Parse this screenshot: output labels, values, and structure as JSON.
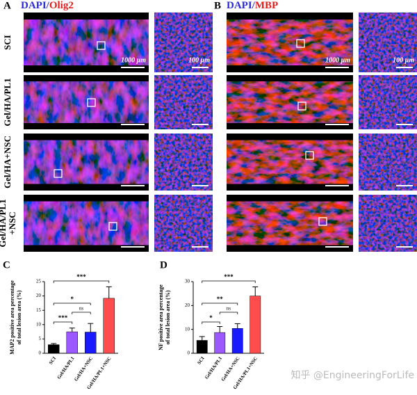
{
  "panel_a": {
    "letter": "A",
    "stain": [
      "DAPI",
      "/",
      "Olig2"
    ],
    "scale_large": "1000 μm",
    "scale_small": "100 μm"
  },
  "panel_b": {
    "letter": "B",
    "stain": [
      "DAPI",
      "/",
      "MBP"
    ],
    "scale_large": "1000 μm",
    "scale_small": "100 μm"
  },
  "rows": [
    [
      "SCI"
    ],
    [
      "Gel/HA/PL1"
    ],
    [
      "Gel/HA+NSC"
    ],
    [
      "Gel/HA/PL1",
      "+NSC"
    ]
  ],
  "chart_data": [
    {
      "type": "bar",
      "label": "C",
      "ylabel": [
        "MAP2 positive area percentage",
        "of total lesion area (%)"
      ],
      "categories": [
        "SCI",
        "Gel/HA/PL1",
        "Gel/HA+NSC",
        "Gel/HA/PL1+NSC"
      ],
      "values": [
        3.0,
        7.5,
        7.4,
        19.2
      ],
      "errors": [
        0.4,
        1.3,
        3.0,
        4.0
      ],
      "colors": [
        "#000000",
        "#9b59ff",
        "#1a1aff",
        "#ff4d4d"
      ],
      "ylim": [
        0,
        25
      ],
      "yticks": [
        0,
        5,
        10,
        15,
        20,
        25
      ],
      "annotations": [
        "***",
        "ns",
        "*",
        "***"
      ]
    },
    {
      "type": "bar",
      "label": "D",
      "ylabel": [
        "NF positive area percentage",
        "of total lesion area (%)"
      ],
      "categories": [
        "SCI",
        "Gel/HA/PL1",
        "Gel/HA+NSC",
        "Gel/HA/PL1+NSC"
      ],
      "values": [
        5.4,
        8.7,
        10.4,
        24.0
      ],
      "errors": [
        1.6,
        2.5,
        2.0,
        3.8
      ],
      "colors": [
        "#000000",
        "#9b59ff",
        "#1a1aff",
        "#ff4d4d"
      ],
      "ylim": [
        0,
        30
      ],
      "yticks": [
        0,
        10,
        20,
        30
      ],
      "annotations": [
        "*",
        "ns",
        "**",
        "***"
      ]
    }
  ],
  "watermark": "知乎 @EngineeringForLife"
}
